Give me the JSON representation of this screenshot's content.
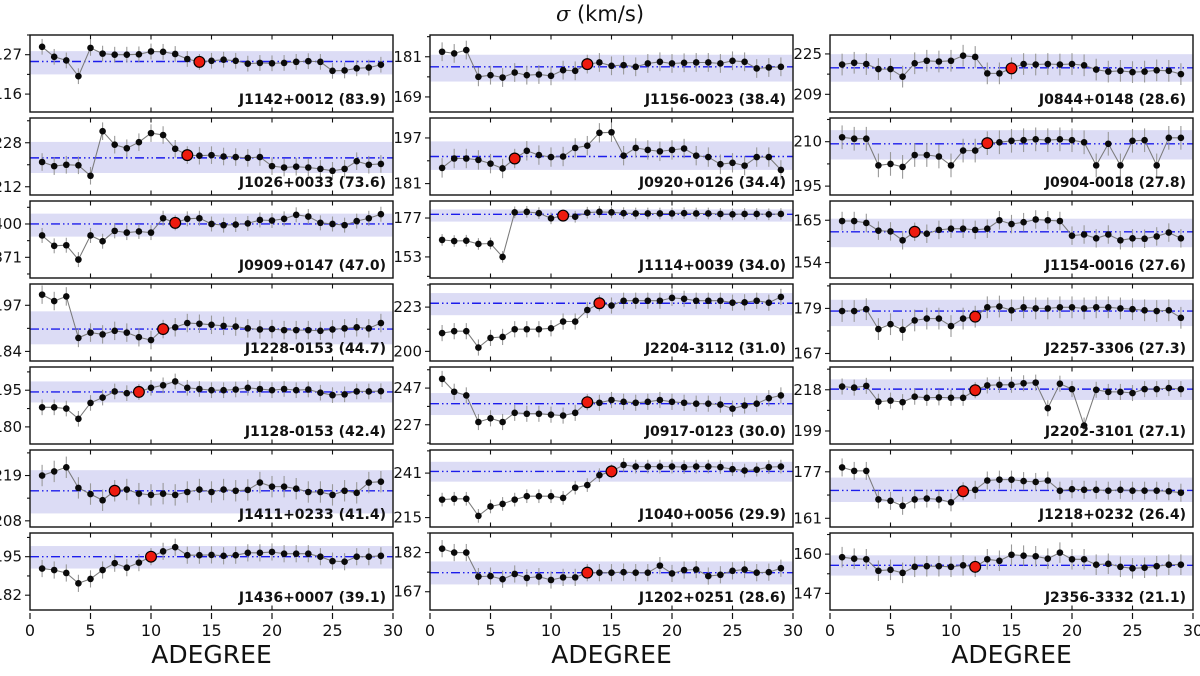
{
  "title": {
    "sigma": "σ",
    "units": " (km/s)"
  },
  "x_axis": {
    "label": "ADEGREE",
    "ticks": [
      0,
      5,
      10,
      15,
      20,
      25,
      30
    ],
    "lim": [
      0,
      30
    ]
  },
  "colors": {
    "band": "#dcdcf5",
    "hline": "#1c1cec",
    "error_bar": "#999999",
    "line": "#7a7a7a",
    "point": "#0a0a0a",
    "red_point": "#ee1a0e",
    "border": "#111111"
  },
  "chart_data": [
    {
      "type": "line",
      "name": "J1142+0012 (83.9)",
      "yticks": [
        127,
        116
      ],
      "ylim": [
        111,
        132.5
      ],
      "hline": 125.1,
      "band": [
        121.5,
        128.0
      ],
      "red_x": 14,
      "err": 2.2,
      "values": [
        129.2,
        126.4,
        125.4,
        121.0,
        128.9,
        127.3,
        127.0,
        127.0,
        127.1,
        127.9,
        127.8,
        127.2,
        125.8,
        125.0,
        125.3,
        125.6,
        125.3,
        124.5,
        124.7,
        124.6,
        124.7,
        125.0,
        125.2,
        125.0,
        122.5,
        122.6,
        123.2,
        123.4,
        124.2
      ]
    },
    {
      "type": "line",
      "name": "J1026+0033 (73.6)",
      "yticks": [
        228,
        212
      ],
      "ylim": [
        209,
        237
      ],
      "hline": 222.5,
      "band": [
        217,
        228.3
      ],
      "red_x": 13,
      "err": 3.2,
      "values": [
        221,
        219.5,
        220,
        219.8,
        216,
        232.2,
        227.3,
        226,
        228.2,
        231.5,
        230.8,
        225.8,
        223.5,
        223.3,
        223.5,
        223,
        222.8,
        222.5,
        222.8,
        219.5,
        219,
        219.3,
        219,
        218.5,
        217.8,
        218.5,
        221.3,
        220,
        220.3
      ]
    },
    {
      "type": "line",
      "name": "J0909+0147 (47.0)",
      "yticks": [
        400,
        371
      ],
      "ylim": [
        353,
        420
      ],
      "hline": 400,
      "band": [
        389,
        409
      ],
      "red_x": 12,
      "err": 6.5,
      "values": [
        390,
        381,
        381.5,
        369,
        390,
        385,
        394,
        392.5,
        393.5,
        392.5,
        405,
        401,
        404.5,
        405,
        400,
        399,
        399.5,
        400.5,
        403.5,
        403,
        404.5,
        408,
        406.5,
        401,
        400,
        399,
        402.5,
        405,
        408.5
      ]
    },
    {
      "type": "line",
      "name": "J1228-0153 (44.7)",
      "yticks": [
        197,
        184
      ],
      "ylim": [
        181.3,
        203
      ],
      "hline": 190.3,
      "band": [
        186,
        195.3
      ],
      "red_x": 11,
      "err": 2.6,
      "values": [
        200,
        198.2,
        199.5,
        187.8,
        189.3,
        188.8,
        189.8,
        189.3,
        188,
        187.2,
        190.3,
        190.8,
        192,
        191.8,
        191.5,
        191.2,
        191,
        190.5,
        190.2,
        190.3,
        190,
        190,
        190,
        189.8,
        190.2,
        190.5,
        190.8,
        190.5,
        192
      ]
    },
    {
      "type": "line",
      "name": "J1128-0153 (42.4)",
      "yticks": [
        195,
        180
      ],
      "ylim": [
        173,
        204.5
      ],
      "hline": 194.3,
      "band": [
        190,
        198.6
      ],
      "red_x": 9,
      "err": 3.2,
      "values": [
        188,
        188,
        187.5,
        183.3,
        189.8,
        192,
        194.5,
        193.8,
        194.3,
        196,
        197,
        198.6,
        196,
        195.5,
        195,
        195,
        195.3,
        196,
        195.5,
        195,
        195.5,
        195,
        195.3,
        194,
        193,
        193.3,
        194.5,
        194.5,
        194.6
      ]
    },
    {
      "type": "line",
      "name": "J1411+0233 (41.4)",
      "yticks": [
        219,
        208
      ],
      "ylim": [
        206.5,
        225.2
      ],
      "hline": 215.3,
      "band": [
        209.8,
        220.3
      ],
      "red_x": 7,
      "err": 2.6,
      "values": [
        219,
        220,
        221,
        216,
        214.5,
        213,
        215.3,
        215.6,
        214.6,
        214.3,
        214.6,
        214.3,
        215,
        215.6,
        215,
        215.6,
        215.3,
        215.5,
        217.3,
        216.3,
        216.3,
        215.8,
        215,
        215,
        214.3,
        215.3,
        214.8,
        217.3,
        217.5
      ]
    },
    {
      "type": "line",
      "name": "J1436+0007 (39.1)",
      "yticks": [
        195,
        182
      ],
      "ylim": [
        177,
        203
      ],
      "hline": 195,
      "band": [
        191,
        198.6
      ],
      "red_x": 10,
      "err": 2.9,
      "values": [
        191,
        190.5,
        189.5,
        186,
        187.5,
        190.5,
        192.8,
        191.3,
        193,
        195,
        196.8,
        198.2,
        195.5,
        195.5,
        195.6,
        195.3,
        195.5,
        196.3,
        196.3,
        196.6,
        196,
        196,
        196,
        195,
        193.5,
        193.3,
        195,
        195,
        195.3
      ]
    },
    {
      "type": "line",
      "name": "J1156-0023 (38.4)",
      "yticks": [
        181,
        169
      ],
      "ylim": [
        164.5,
        187.5
      ],
      "hline": 178,
      "band": [
        173.6,
        181.6
      ],
      "red_x": 13,
      "err": 2.8,
      "values": [
        182.5,
        182,
        183,
        175,
        175.5,
        174.8,
        176.3,
        175.5,
        175.7,
        175.3,
        177,
        176.8,
        178.8,
        179.3,
        178.3,
        178.5,
        178,
        179,
        179.5,
        179,
        179.2,
        179.3,
        179.3,
        179,
        179.8,
        179.5,
        177.5,
        177.8,
        178
      ]
    },
    {
      "type": "line",
      "name": "J0920+0126 (34.4)",
      "yticks": [
        197,
        181
      ],
      "ylim": [
        177,
        204
      ],
      "hline": 190.5,
      "band": [
        185.8,
        195.8
      ],
      "red_x": 7,
      "err": 3.4,
      "values": [
        186.5,
        189.8,
        189.8,
        189.3,
        188,
        186.3,
        189.8,
        192.5,
        191,
        190.3,
        190.5,
        193.5,
        194.3,
        198.8,
        199,
        190.8,
        193.5,
        192.8,
        192.3,
        192.8,
        193.3,
        190.8,
        190.3,
        187.8,
        188.3,
        187.3,
        190.3,
        190.3,
        185.8
      ]
    },
    {
      "type": "line",
      "name": "J1114+0039 (34.0)",
      "yticks": [
        177,
        153
      ],
      "ylim": [
        140,
        187.5
      ],
      "hline": 179.3,
      "band": [
        174.8,
        182.3
      ],
      "red_x": 11,
      "err": 3.6,
      "values": [
        163.5,
        162.8,
        163,
        161,
        161.3,
        153,
        180.5,
        180.8,
        180,
        176.8,
        178.5,
        177.8,
        180.3,
        180.8,
        180.5,
        180,
        179.8,
        179.8,
        179.8,
        179.8,
        180,
        179.8,
        179.8,
        179.5,
        179.3,
        179.5,
        179.5,
        179.3,
        179.5
      ]
    },
    {
      "type": "line",
      "name": "J2204-3112 (31.0)",
      "yticks": [
        223,
        200
      ],
      "ylim": [
        195,
        235
      ],
      "hline": 225,
      "band": [
        218.8,
        230.3
      ],
      "red_x": 14,
      "err": 4.2,
      "values": [
        209.5,
        210.5,
        210.5,
        202,
        207,
        207.5,
        211.5,
        211.5,
        211.5,
        212,
        215.5,
        215.5,
        221.5,
        225,
        223.8,
        226.3,
        226.3,
        226.3,
        226.3,
        227.8,
        227.3,
        226.3,
        226.3,
        226.3,
        225.3,
        225.5,
        226.3,
        225.3,
        228.3
      ]
    },
    {
      "type": "line",
      "name": "J0917-0123 (30.0)",
      "yticks": [
        247,
        227
      ],
      "ylim": [
        216.5,
        258.5
      ],
      "hline": 238.5,
      "band": [
        232.3,
        244.3
      ],
      "red_x": 13,
      "err": 4.4,
      "values": [
        252,
        245,
        243,
        228.5,
        230.5,
        228.5,
        233.5,
        233,
        233,
        232.5,
        232,
        233.5,
        239.3,
        239,
        240.5,
        239.5,
        239,
        239.5,
        240.5,
        239.5,
        239,
        238.5,
        238.5,
        238,
        235.8,
        237.5,
        238.5,
        241.5,
        243
      ]
    },
    {
      "type": "line",
      "name": "J1040+0056 (29.9)",
      "yticks": [
        241,
        215
      ],
      "ylim": [
        209.5,
        254.5
      ],
      "hline": 242,
      "band": [
        236,
        247.6
      ],
      "red_x": 15,
      "err": 4,
      "values": [
        225.5,
        226,
        226,
        216,
        221.5,
        223,
        225.5,
        227.5,
        227.5,
        227.5,
        226.5,
        232.5,
        234,
        239.8,
        242,
        245.8,
        244.8,
        244.8,
        244.8,
        244.8,
        244.5,
        244.8,
        244.8,
        244.5,
        243.3,
        242.5,
        243,
        244.5,
        244.8
      ]
    },
    {
      "type": "line",
      "name": "J1202+0251 (28.6)",
      "yticks": [
        182,
        167
      ],
      "ylim": [
        160,
        189.5
      ],
      "hline": 174.3,
      "band": [
        169.8,
        178.6
      ],
      "red_x": 13,
      "err": 3.3,
      "values": [
        183.5,
        182,
        182,
        172.8,
        173,
        171.8,
        173.8,
        172.3,
        172.8,
        171.5,
        172.5,
        172.5,
        174.3,
        174.3,
        174.3,
        174.5,
        174.3,
        174.3,
        177,
        174,
        175.3,
        175.5,
        173,
        173.5,
        175,
        175.5,
        174.3,
        174.5,
        176
      ]
    },
    {
      "type": "line",
      "name": "J0844+0148 (28.6)",
      "yticks": [
        225,
        209
      ],
      "ylim": [
        202,
        232.5
      ],
      "hline": 219.5,
      "band": [
        214,
        224.9
      ],
      "red_x": 15,
      "err": 4.3,
      "values": [
        220.8,
        221.5,
        221,
        219,
        219,
        216,
        221.3,
        222.3,
        222,
        222.3,
        224.3,
        223.8,
        217.3,
        217.3,
        219.3,
        221,
        220.8,
        221,
        220.8,
        221,
        220.5,
        218.8,
        218,
        218.3,
        217.8,
        218,
        218.5,
        218.3,
        217
      ]
    },
    {
      "type": "line",
      "name": "J0904-0018 (27.8)",
      "yticks": [
        210,
        195
      ],
      "ylim": [
        192,
        218
      ],
      "hline": 209.3,
      "band": [
        204,
        213.9
      ],
      "red_x": 13,
      "err": 4,
      "values": [
        211.5,
        211,
        211,
        202,
        202.5,
        201.5,
        205.5,
        205.5,
        205,
        202,
        207,
        207,
        209.5,
        209.8,
        210.3,
        210.5,
        210.8,
        210.5,
        210.8,
        210.5,
        209.8,
        202,
        209.3,
        202,
        210.3,
        210.5,
        202,
        211.3,
        211.3
      ]
    },
    {
      "type": "line",
      "name": "J1154-0016 (27.6)",
      "yticks": [
        165,
        154
      ],
      "ylim": [
        150,
        170
      ],
      "hline": 162,
      "band": [
        158,
        165.4
      ],
      "red_x": 7,
      "err": 2.4,
      "values": [
        164.8,
        164.8,
        164.3,
        162.3,
        162.1,
        159.8,
        162,
        161.5,
        162.5,
        162.8,
        162.8,
        162.5,
        162.8,
        165,
        164,
        164.5,
        165.2,
        165,
        164.8,
        161,
        161.3,
        160.3,
        161.3,
        159.8,
        160.3,
        160.2,
        160.8,
        161.8,
        160.3
      ]
    },
    {
      "type": "line",
      "name": "J2257-3306 (27.3)",
      "yticks": [
        179,
        167
      ],
      "ylim": [
        165,
        185.5
      ],
      "hline": 178.3,
      "band": [
        174.3,
        181.3
      ],
      "red_x": 12,
      "err": 2.9,
      "values": [
        178.3,
        178.3,
        178.8,
        173.5,
        174.8,
        173.3,
        175.8,
        176.3,
        176.3,
        174.3,
        176.3,
        176.8,
        179.3,
        179.5,
        178.5,
        179.3,
        179,
        179,
        179.3,
        179.3,
        179,
        179.3,
        179.3,
        179,
        178.8,
        178.5,
        178.3,
        178.5,
        176.5
      ]
    },
    {
      "type": "line",
      "name": "J2202-3101 (27.1)",
      "yticks": [
        218,
        199
      ],
      "ylim": [
        193,
        228.5
      ],
      "hline": 218.3,
      "band": [
        213.3,
        222.8
      ],
      "red_x": 12,
      "err": 3.7,
      "values": [
        219.5,
        219,
        219.8,
        212.5,
        213,
        212.3,
        214.8,
        214.3,
        214.5,
        214.3,
        214.3,
        217.8,
        220,
        220.3,
        220.3,
        221,
        221.3,
        209.5,
        220.8,
        218.3,
        201.5,
        218,
        217,
        217,
        216.5,
        218.3,
        218.3,
        218.8,
        218.3
      ]
    },
    {
      "type": "line",
      "name": "J1218+0232 (26.4)",
      "yticks": [
        177,
        161
      ],
      "ylim": [
        158,
        184.5
      ],
      "hline": 170.6,
      "band": [
        166.6,
        175
      ],
      "red_x": 11,
      "err": 3.1,
      "values": [
        178.5,
        177.3,
        177.3,
        167.5,
        167,
        165.3,
        167.5,
        167.8,
        167.5,
        166.5,
        170.3,
        170.8,
        174,
        174.3,
        174.3,
        173.8,
        173.5,
        174,
        170.5,
        171,
        170.8,
        170.8,
        170.5,
        170.8,
        170.5,
        170.5,
        170.5,
        170.3,
        169.8
      ]
    },
    {
      "type": "line",
      "name": "J2356-3332 (21.1)",
      "yticks": [
        160,
        147
      ],
      "ylim": [
        141.5,
        167
      ],
      "hline": 156.3,
      "band": [
        152.9,
        159.6
      ],
      "red_x": 12,
      "err": 3.4,
      "values": [
        159,
        158.5,
        158.3,
        154.5,
        154.8,
        153.8,
        155.8,
        156,
        156,
        155.8,
        156.3,
        155.8,
        158.3,
        157.8,
        159.8,
        159.5,
        159.3,
        158.5,
        160.5,
        158.3,
        158.3,
        156.5,
        156.8,
        155.8,
        155.3,
        155.5,
        156,
        156.5,
        156.5
      ]
    }
  ]
}
